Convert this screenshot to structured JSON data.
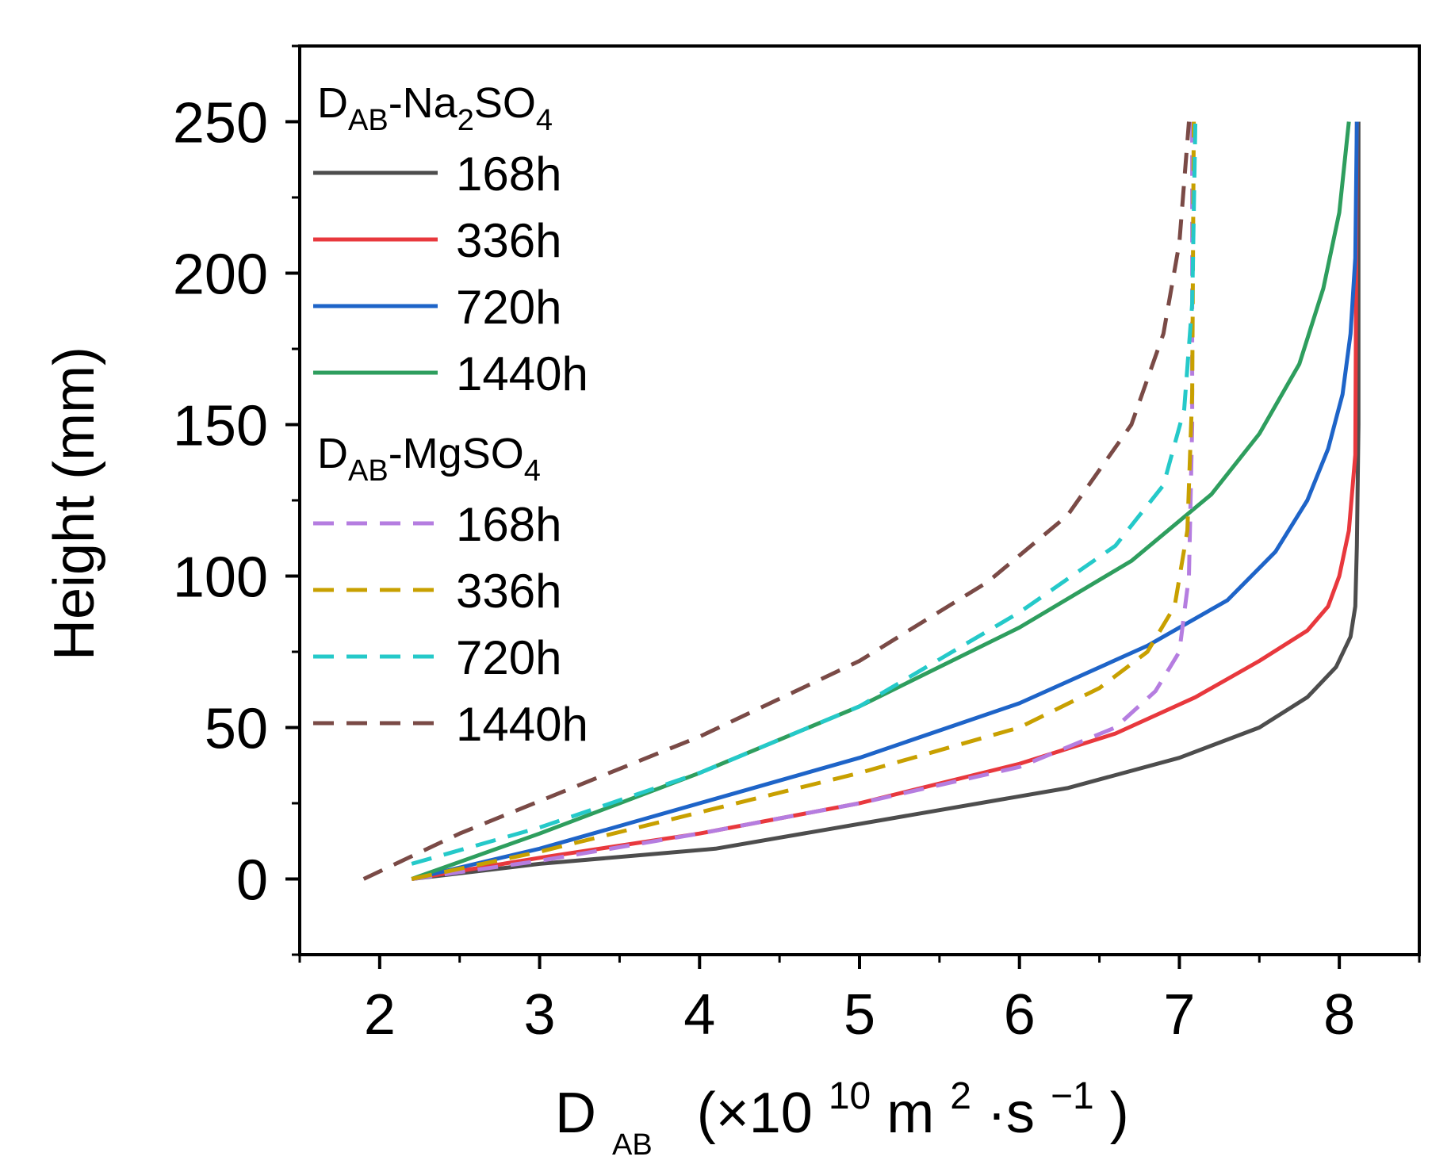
{
  "chart_data": {
    "type": "line",
    "xlabel": "D_AB (×10^10 m²·s⁻¹)",
    "xlabel_parts": {
      "main": "D",
      "main_sub": "AB",
      "open": "(×10",
      "exp": "10",
      "unit_m": "m",
      "m_exp": "2",
      "dot_s": "·s",
      "s_exp": "−1",
      "close": ")"
    },
    "ylabel": "Height (mm)",
    "xlim": [
      1.5,
      8.5
    ],
    "ylim": [
      -25,
      275
    ],
    "xticks": [
      2,
      3,
      4,
      5,
      6,
      7,
      8
    ],
    "xtick_labels": [
      "2",
      "3",
      "4",
      "5",
      "6",
      "7",
      "8"
    ],
    "yticks": [
      0,
      50,
      100,
      150,
      200,
      250
    ],
    "ytick_labels": [
      "0",
      "50",
      "100",
      "150",
      "200",
      "250"
    ],
    "legend": {
      "placement": "top-left",
      "groups": [
        {
          "head": "D",
          "head_sub": "AB",
          "head_rest": "-Na",
          "head_sub2": "2",
          "head_rest2": "SO",
          "head_sub3": "4",
          "entries": [
            "168h",
            "336h",
            "720h",
            "1440h"
          ]
        },
        {
          "head": "D",
          "head_sub": "AB",
          "head_rest": "-MgSO",
          "head_sub2": "4",
          "entries": [
            "168h",
            "336h",
            "720h",
            "1440h"
          ]
        }
      ]
    },
    "series": [
      {
        "group": "D_AB-Na2SO4",
        "name": "168h",
        "color": "#4d4d4d",
        "dash": "solid",
        "x": [
          2.2,
          3.0,
          4.1,
          5.2,
          6.3,
          7.0,
          7.5,
          7.8,
          7.98,
          8.07,
          8.1,
          8.11,
          8.12,
          8.12
        ],
        "y": [
          0,
          5,
          10,
          20,
          30,
          40,
          50,
          60,
          70,
          80,
          90,
          110,
          150,
          250
        ]
      },
      {
        "group": "D_AB-Na2SO4",
        "name": "336h",
        "color": "#e8383d",
        "dash": "solid",
        "x": [
          2.2,
          3.0,
          4.0,
          5.0,
          6.0,
          6.6,
          7.1,
          7.5,
          7.8,
          7.93,
          8.0,
          8.06,
          8.1,
          8.11
        ],
        "y": [
          0,
          7,
          15,
          25,
          38,
          48,
          60,
          72,
          82,
          90,
          100,
          115,
          140,
          250
        ]
      },
      {
        "group": "D_AB-Na2SO4",
        "name": "720h",
        "color": "#1e64c8",
        "dash": "solid",
        "x": [
          2.2,
          3.0,
          4.0,
          5.0,
          6.0,
          6.8,
          7.3,
          7.6,
          7.8,
          7.93,
          8.02,
          8.07,
          8.1,
          8.11
        ],
        "y": [
          0,
          10,
          25,
          40,
          58,
          77,
          92,
          108,
          125,
          142,
          160,
          180,
          205,
          250
        ]
      },
      {
        "group": "D_AB-Na2SO4",
        "name": "1440h",
        "color": "#2e9e5e",
        "dash": "solid",
        "x": [
          2.2,
          3.0,
          4.0,
          5.0,
          6.0,
          6.7,
          7.2,
          7.5,
          7.75,
          7.9,
          8.0,
          8.06
        ],
        "y": [
          0,
          15,
          35,
          57,
          83,
          105,
          127,
          147,
          170,
          195,
          220,
          250
        ]
      },
      {
        "group": "D_AB-MgSO4",
        "name": "168h",
        "color": "#b57de0",
        "dash": "dashed",
        "x": [
          2.2,
          3.0,
          4.0,
          5.0,
          6.0,
          6.6,
          6.85,
          7.0,
          7.06,
          7.08,
          7.08
        ],
        "y": [
          0,
          6,
          15,
          25,
          37,
          50,
          62,
          75,
          100,
          150,
          250
        ]
      },
      {
        "group": "D_AB-MgSO4",
        "name": "336h",
        "color": "#c8a000",
        "dash": "dashed",
        "x": [
          2.2,
          3.0,
          4.0,
          5.0,
          6.0,
          6.5,
          6.8,
          6.97,
          7.05,
          7.08,
          7.09
        ],
        "y": [
          0,
          9,
          22,
          35,
          50,
          63,
          75,
          90,
          115,
          160,
          250
        ]
      },
      {
        "group": "D_AB-MgSO4",
        "name": "720h",
        "color": "#25c9c9",
        "dash": "dashed",
        "x": [
          2.2,
          3.0,
          4.0,
          5.0,
          6.0,
          6.6,
          6.9,
          7.03,
          7.08,
          7.1
        ],
        "y": [
          5,
          17,
          35,
          57,
          88,
          110,
          130,
          155,
          190,
          250
        ]
      },
      {
        "group": "D_AB-MgSO4",
        "name": "1440h",
        "color": "#7a4a46",
        "dash": "dashed",
        "x": [
          1.9,
          2.5,
          3.2,
          4.0,
          5.0,
          5.8,
          6.3,
          6.7,
          6.9,
          7.0,
          7.06
        ],
        "y": [
          0,
          15,
          30,
          47,
          72,
          98,
          120,
          150,
          180,
          210,
          250
        ]
      }
    ]
  }
}
